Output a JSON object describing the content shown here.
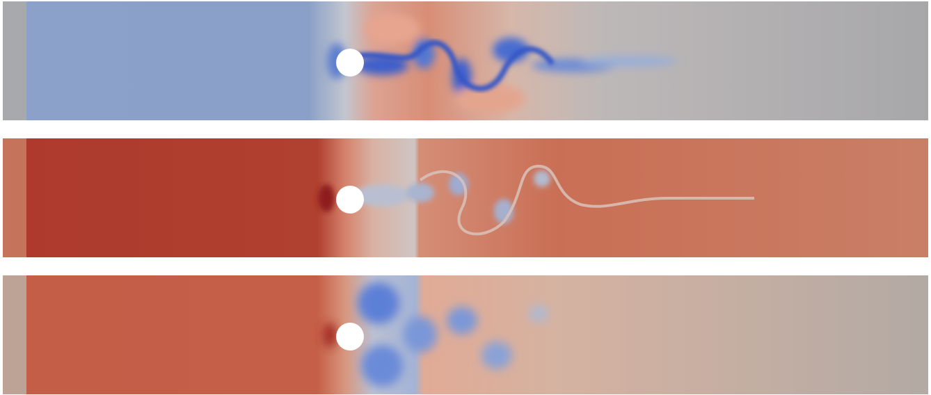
{
  "figure": {
    "panels": [
      {
        "field": "panel-1",
        "colormap": "coolwarm",
        "inlet_color": "#a8a9ad",
        "upstream_color": "#8aa1c9",
        "downstream_color": "#a6a7ab",
        "wake_color": "#3d64d1"
      },
      {
        "field": "panel-2",
        "colormap": "coolwarm",
        "inlet_color": "#c6735c",
        "upstream_color": "#ad3a2d",
        "downstream_color": "#c87b62",
        "wake_color": "#a8b4cc"
      },
      {
        "field": "panel-3",
        "colormap": "coolwarm",
        "inlet_color": "#bca395",
        "upstream_color": "#c5604a",
        "downstream_color": "#c4a493",
        "wake_color": "#6f8fd8"
      }
    ],
    "obstacle": {
      "shape": "circle",
      "color": "#ffffff"
    }
  }
}
